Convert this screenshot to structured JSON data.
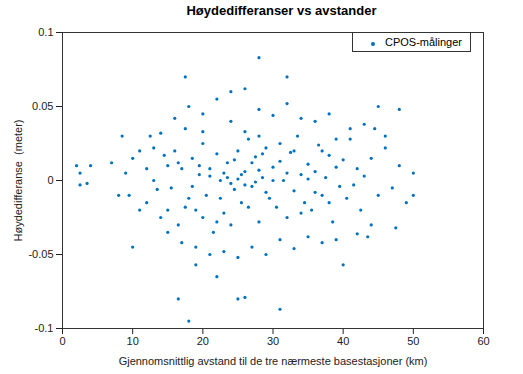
{
  "chart_data": {
    "type": "scatter",
    "title": "Høydedifferanser vs avstander",
    "x_label": "Gjennomsnittlig avstand til de tre nærmeste basestasjoner (km)",
    "y_label": "Høydedifferanse  (meter)",
    "xlim": [
      0,
      60
    ],
    "xticks": [
      0,
      10,
      20,
      30,
      40,
      50,
      60
    ],
    "ylim": [
      -0.1,
      0.1
    ],
    "yticks": [
      -0.1,
      -0.05,
      0,
      0.05,
      0.1
    ],
    "legend": "northeast",
    "grid": false,
    "series": [
      {
        "name": "CPOS-målinger",
        "color": "#0072BD",
        "marker": "dot",
        "x": [
          2,
          2.5,
          3.5,
          4,
          2.5,
          17.5,
          16.5,
          18,
          25,
          26,
          28,
          32,
          31,
          50,
          50,
          48,
          45,
          22,
          19,
          40,
          7,
          8,
          9,
          10,
          11,
          12,
          12.5,
          13,
          14,
          15,
          15.5,
          16,
          16.5,
          17,
          17.5,
          18,
          18.5,
          19,
          19.5,
          20,
          20.5,
          21,
          21.5,
          22,
          22.5,
          23,
          23.5,
          24,
          24.5,
          25,
          25.5,
          26,
          26.5,
          27,
          27.5,
          28,
          28.5,
          29,
          29.5,
          30,
          30.5,
          31,
          31.5,
          32,
          32.5,
          33,
          33.5,
          34,
          34.5,
          35,
          35.5,
          36,
          36.5,
          37,
          37.5,
          38,
          38.5,
          39,
          39.5,
          40,
          40.5,
          41,
          41.5,
          42,
          42.5,
          43,
          44,
          45,
          46,
          47,
          48,
          49,
          47.5,
          44.5,
          43.5,
          12,
          13.5,
          14.5,
          15,
          16,
          17,
          18,
          19,
          20,
          21,
          22,
          23,
          24,
          25,
          26,
          27,
          28,
          29,
          30,
          31,
          32,
          33,
          34,
          35,
          36,
          37,
          38,
          39,
          41,
          42,
          43,
          44,
          46,
          20,
          22,
          21,
          23,
          24,
          25,
          26,
          27,
          28,
          29,
          30,
          22.5,
          23.5,
          24.5,
          25.5,
          26.5,
          27.5,
          28.5,
          19.5,
          18.5,
          17.5,
          33,
          34,
          32,
          31,
          35,
          36,
          37,
          38,
          39,
          16.5,
          13,
          11,
          10,
          9.5,
          8.5,
          14,
          15,
          20,
          26,
          28,
          24
        ],
        "values": [
          0.01,
          -0.003,
          -0.002,
          0.01,
          0.005,
          0.07,
          -0.08,
          -0.095,
          -0.08,
          -0.079,
          0.083,
          0.07,
          -0.087,
          0.005,
          -0.01,
          0.048,
          0.05,
          -0.065,
          -0.057,
          -0.057,
          0.012,
          -0.01,
          0.005,
          -0.045,
          0.02,
          -0.015,
          0.03,
          0.0,
          -0.025,
          0.01,
          -0.005,
          0.02,
          -0.03,
          0.008,
          0.035,
          -0.012,
          0.015,
          -0.02,
          0.004,
          0.025,
          -0.01,
          0.003,
          -0.035,
          0.018,
          0.0,
          -0.022,
          0.012,
          0.04,
          -0.006,
          0.02,
          -0.015,
          0.006,
          0.028,
          -0.004,
          0.016,
          -0.028,
          0.002,
          0.022,
          -0.012,
          0.009,
          -0.018,
          0.013,
          0.0,
          -0.025,
          0.019,
          -0.007,
          0.03,
          0.004,
          -0.015,
          0.011,
          -0.02,
          0.006,
          0.024,
          -0.01,
          0.002,
          0.017,
          -0.028,
          0.009,
          -0.004,
          0.014,
          -0.012,
          0.028,
          -0.003,
          0.008,
          -0.02,
          0.003,
          0.015,
          -0.01,
          0.022,
          -0.005,
          0.01,
          -0.015,
          -0.032,
          0.035,
          -0.038,
          0.008,
          -0.006,
          0.017,
          -0.035,
          0.042,
          -0.042,
          0.05,
          -0.045,
          0.045,
          -0.05,
          0.055,
          -0.048,
          0.06,
          -0.052,
          0.062,
          -0.045,
          0.048,
          -0.05,
          0.044,
          -0.04,
          0.052,
          -0.046,
          0.042,
          -0.038,
          0.04,
          -0.042,
          0.045,
          -0.04,
          0.035,
          -0.036,
          0.038,
          -0.03,
          0.03,
          0.033,
          -0.028,
          0.008,
          0.005,
          -0.002,
          0.001,
          -0.003,
          0.012,
          0.007,
          -0.008,
          0.0,
          -0.012,
          0.002,
          0.014,
          0.004,
          -0.018,
          -0.001,
          0.018,
          0.01,
          -0.004,
          -0.018,
          0.02,
          -0.022,
          0.005,
          0.025,
          0.001,
          -0.008,
          0.02,
          -0.015,
          0.028,
          0.012,
          0.022,
          -0.02,
          0.015,
          -0.01,
          0.03,
          0.032,
          -0.02,
          -0.025,
          0.033,
          0.03,
          -0.03
        ]
      }
    ]
  }
}
